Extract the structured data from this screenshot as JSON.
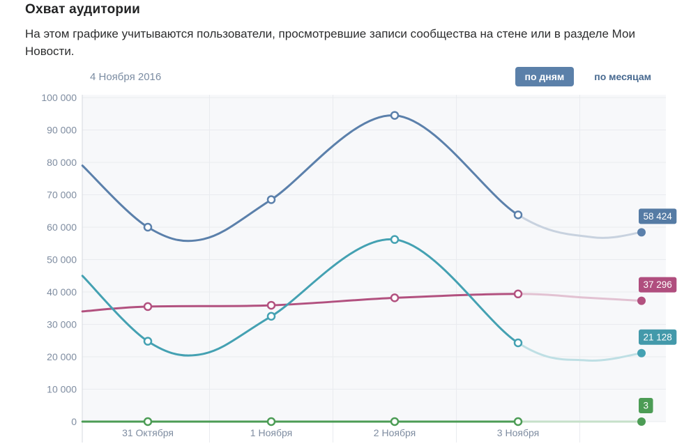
{
  "header": {
    "title": "Охват аудитории",
    "description": "На этом графике учитываются пользователи, просмотревшие записи сообщества на стене или в разделе Мои Новости."
  },
  "controls": {
    "selected_date": "4 Ноября 2016",
    "tabs": [
      {
        "label": "по дням",
        "active": true
      },
      {
        "label": "по месяцам",
        "active": false
      }
    ]
  },
  "chart_data": {
    "type": "line",
    "title": "Охват аудитории",
    "x_categories": [
      "31 Октября",
      "1 Ноября",
      "2 Ноября",
      "3 Ноября"
    ],
    "y_axis": {
      "min": 0,
      "max": 100000,
      "step": 10000,
      "tick_labels": [
        "0",
        "10 000",
        "20 000",
        "30 000",
        "40 000",
        "50 000",
        "60 000",
        "70 000",
        "80 000",
        "90 000",
        "100 000"
      ]
    },
    "grid": true,
    "legend": "none",
    "colors": {
      "plot_background": "#f7f8fa",
      "gridline": "#e9ebef",
      "axis_line": "#d5d9df",
      "tick_text": "#7e8ca0"
    },
    "series": [
      {
        "id": "pink",
        "color": "#b2517f",
        "faded_color": "#e2c2d2",
        "badge_color": "#b04e7e",
        "day_values": [
          35500,
          35900,
          38200,
          39400
        ],
        "current_value": 37296,
        "current_label": "37 296",
        "curve_solid": [
          [
            -0.53,
            34000
          ],
          [
            0,
            35500
          ],
          [
            1,
            35900
          ],
          [
            2,
            38200
          ],
          [
            3,
            39400
          ]
        ],
        "curve_faded": [
          [
            3,
            39400
          ],
          [
            3.55,
            38250
          ],
          [
            4,
            37296
          ]
        ],
        "final_day": 4
      },
      {
        "id": "teal",
        "color": "#44a1b2",
        "faded_color": "#bedfe4",
        "badge_color": "#4399aa",
        "day_values": [
          24800,
          32500,
          56200,
          24300
        ],
        "current_value": 21128,
        "current_label": "21 128",
        "curve_solid": [
          [
            -0.53,
            45000
          ],
          [
            0,
            24800
          ],
          [
            0.45,
            20900
          ],
          [
            1,
            32500
          ],
          [
            2,
            56200
          ],
          [
            3,
            24300
          ]
        ],
        "curve_faded": [
          [
            3,
            24300
          ],
          [
            3.55,
            18900
          ],
          [
            4,
            21128
          ]
        ],
        "final_day": 4
      },
      {
        "id": "blue",
        "color": "#5b80ab",
        "faded_color": "#c8d2df",
        "badge_color": "#557ba4",
        "day_values": [
          60000,
          68500,
          94500,
          63800
        ],
        "current_value": 58424,
        "current_label": "58 424",
        "curve_solid": [
          [
            -0.53,
            79000
          ],
          [
            0,
            60000
          ],
          [
            0.45,
            56300
          ],
          [
            1,
            68500
          ],
          [
            2,
            94500
          ],
          [
            3,
            63800
          ]
        ],
        "curve_faded": [
          [
            3,
            63800
          ],
          [
            3.6,
            56900
          ],
          [
            4,
            58424
          ]
        ],
        "final_day": 4
      },
      {
        "id": "green",
        "color": "#4c9c55",
        "faded_color": "#c6e0c9",
        "badge_color": "#4c9c55",
        "day_values": [
          0,
          0,
          0,
          0
        ],
        "current_value": 3,
        "current_label": "3",
        "curve_solid": [
          [
            -0.53,
            0
          ],
          [
            0,
            0
          ],
          [
            1,
            0
          ],
          [
            2,
            0
          ],
          [
            3,
            0
          ]
        ],
        "curve_faded": [
          [
            3,
            0
          ],
          [
            4,
            0
          ]
        ],
        "final_day": 4
      }
    ]
  }
}
